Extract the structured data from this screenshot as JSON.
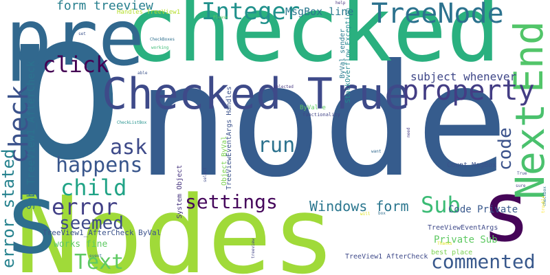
{
  "cloud": {
    "words": [
      {
        "text": "p",
        "color": "#31688e"
      },
      {
        "text": "node",
        "color": "#365c8d"
      },
      {
        "text": "Nodes",
        "color": "#a0da39"
      },
      {
        "text": "checked",
        "color": "#2ab07f"
      },
      {
        "text": "pre",
        "color": "#31688e"
      },
      {
        "text": "s",
        "color": "#2e6e8e"
      },
      {
        "text": "Checked True",
        "color": "#3e4a89"
      },
      {
        "text": "s",
        "color": "#450558"
      },
      {
        "text": "Next",
        "color": "#4ac16d"
      },
      {
        "text": "End",
        "color": "#52c569"
      },
      {
        "text": "TreeNode",
        "color": "#2c728e"
      },
      {
        "text": "property",
        "color": "#433d84"
      },
      {
        "text": "check",
        "color": "#3b528b"
      },
      {
        "text": "Integer",
        "color": "#21918c"
      },
      {
        "text": "click",
        "color": "#440154"
      },
      {
        "text": "child",
        "color": "#20a386"
      },
      {
        "text": "happens",
        "color": "#39568c"
      },
      {
        "text": "ask",
        "color": "#3e4a89"
      },
      {
        "text": "run",
        "color": "#2c728e"
      },
      {
        "text": "error",
        "color": "#424086"
      },
      {
        "text": "settings",
        "color": "#46085c"
      },
      {
        "text": "Sub",
        "color": "#3bbb75"
      },
      {
        "text": "seemed",
        "color": "#3e4a89"
      },
      {
        "text": "commented",
        "color": "#38588c"
      },
      {
        "text": "Text",
        "color": "#5ec962"
      },
      {
        "text": "code",
        "color": "#3b528b"
      },
      {
        "text": "Windows form",
        "color": "#2a768e"
      },
      {
        "text": "error stated",
        "color": "#26828e"
      },
      {
        "text": "Sub TreeView1_AfterCheck",
        "color": "#2c728e"
      },
      {
        "text": "form treeview",
        "color": "#277f8e"
      },
      {
        "text": "MsgBox line",
        "color": "#2a788e"
      },
      {
        "text": "subject whenever",
        "color": "#3f4788"
      },
      {
        "text": "Private Sub",
        "color": "#5ec962"
      },
      {
        "text": "Code Private",
        "color": "#38588c"
      },
      {
        "text": "works fine",
        "color": "#5ec962"
      },
      {
        "text": "TreeView1_AfterCheck ByVal",
        "color": "#3b528b"
      },
      {
        "text": "TreeViewEventArgs",
        "color": "#3e4989"
      },
      {
        "text": "Count MsgBox",
        "color": "#3b528b"
      },
      {
        "text": "TreeView1 AfterCheck",
        "color": "#3e4989"
      },
      {
        "text": "best place",
        "color": "#7ad151"
      },
      {
        "text": "StackOverflow Exception",
        "color": "#23898e"
      },
      {
        "text": "ByVal sender",
        "color": "#297b8e"
      },
      {
        "text": "TreeViewEventArgs Handles",
        "color": "#3b528b"
      },
      {
        "text": "Object ByVal",
        "color": "#7ad151"
      },
      {
        "text": "System Object",
        "color": "#46337e"
      },
      {
        "text": "ByVal e",
        "color": "#5ec962"
      },
      {
        "text": "Handles TreeView1",
        "color": "#b5de2b"
      },
      {
        "text": "functionality",
        "color": "#414487"
      },
      {
        "text": "CheckListBox",
        "color": "#21918c"
      },
      {
        "text": "CheckBoxes",
        "color": "#2e6f8e"
      },
      {
        "text": "working",
        "color": "#3bbb75"
      },
      {
        "text": "selected",
        "color": "#453781"
      },
      {
        "text": "Please",
        "color": "#5ec962"
      },
      {
        "text": "help",
        "color": "#46337e"
      },
      {
        "text": "set",
        "color": "#3b528b"
      },
      {
        "text": "need",
        "color": "#443983"
      },
      {
        "text": "want",
        "color": "#31688e"
      },
      {
        "text": "True",
        "color": "#3e4989"
      },
      {
        "text": "sure",
        "color": "#414487"
      },
      {
        "text": "checkbox",
        "color": "#2a788e"
      },
      {
        "text": "trouble",
        "color": "#fde725"
      },
      {
        "text": "Thanks",
        "color": "#dde318"
      },
      {
        "text": "box",
        "color": "#2e6e8e"
      },
      {
        "text": "will",
        "color": "#dde318"
      },
      {
        "text": "event",
        "color": "#2c728e"
      },
      {
        "text": "treeview",
        "color": "#414487"
      },
      {
        "text": "select",
        "color": "#3e4989"
      },
      {
        "text": "able",
        "color": "#3b528b"
      }
    ]
  }
}
